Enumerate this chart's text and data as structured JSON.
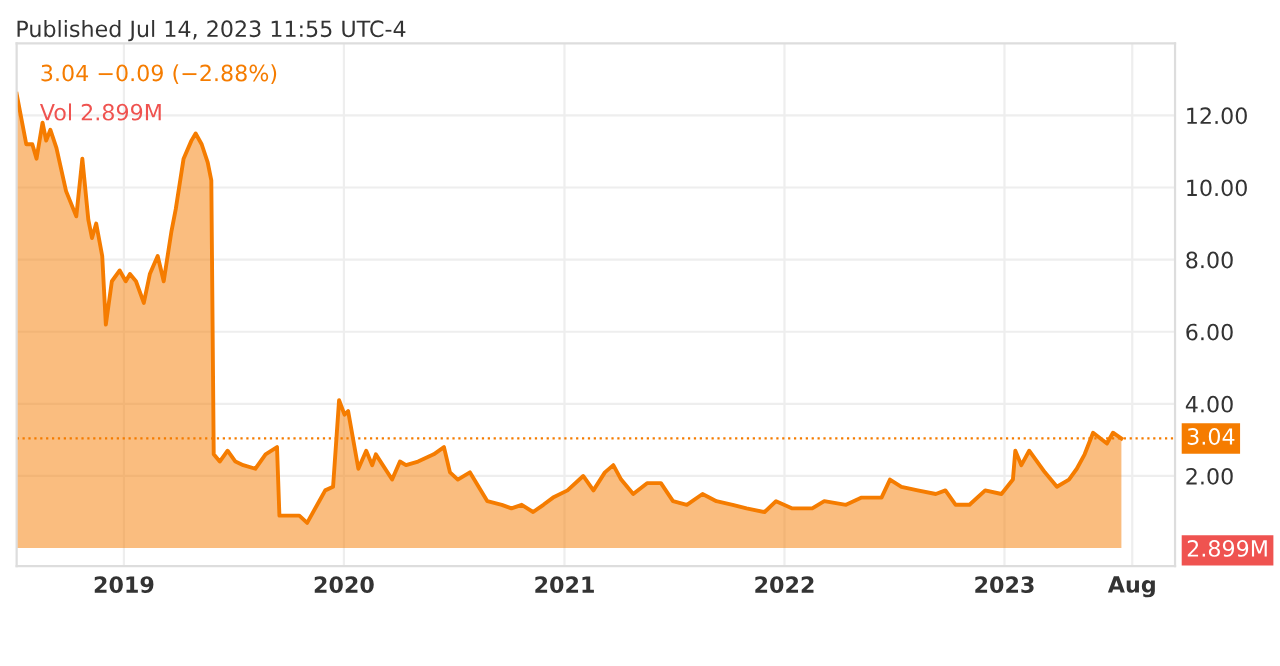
{
  "chart_data": {
    "type": "area",
    "title": "Published Jul 14, 2023 11:55 UTC-4",
    "x": [
      "2018-07-07",
      "2018-07-23",
      "2018-08-02",
      "2018-08-09",
      "2018-08-19",
      "2018-08-25",
      "2018-09-01",
      "2018-09-11",
      "2018-09-27",
      "2018-10-14",
      "2018-10-24",
      "2018-11-03",
      "2018-11-09",
      "2018-11-16",
      "2018-11-26",
      "2018-12-02",
      "2018-12-12",
      "2018-12-25",
      "2019-01-04",
      "2019-01-11",
      "2019-01-21",
      "2019-02-03",
      "2019-02-13",
      "2019-02-26",
      "2019-03-08",
      "2019-03-21",
      "2019-03-28",
      "2019-04-10",
      "2019-04-23",
      "2019-04-30",
      "2019-05-10",
      "2019-05-20",
      "2019-05-26",
      "2019-05-30",
      "2019-06-09",
      "2019-06-22",
      "2019-07-05",
      "2019-07-18",
      "2019-08-07",
      "2019-08-24",
      "2019-09-12",
      "2019-09-16",
      "2019-10-02",
      "2019-10-19",
      "2019-11-01",
      "2019-11-21",
      "2019-12-01",
      "2019-12-14",
      "2019-12-24",
      "2020-01-02",
      "2020-01-08",
      "2020-01-25",
      "2020-02-07",
      "2020-02-17",
      "2020-02-23",
      "2020-03-21",
      "2020-04-03",
      "2020-04-13",
      "2020-05-03",
      "2020-05-29",
      "2020-06-15",
      "2020-06-25",
      "2020-07-08",
      "2020-07-28",
      "2020-08-26",
      "2020-09-19",
      "2020-10-05",
      "2020-10-22",
      "2020-11-10",
      "2020-11-27",
      "2020-12-13",
      "2021-01-06",
      "2021-02-01",
      "2021-02-18",
      "2021-03-09",
      "2021-03-23",
      "2021-04-05",
      "2021-04-25",
      "2021-05-18",
      "2021-06-10",
      "2021-06-30",
      "2021-07-23",
      "2021-08-18",
      "2021-09-10",
      "2021-10-07",
      "2021-10-30",
      "2021-11-29",
      "2021-12-18",
      "2022-01-14",
      "2022-02-16",
      "2022-03-08",
      "2022-04-13",
      "2022-05-09",
      "2022-06-11",
      "2022-06-25",
      "2022-07-14",
      "2022-08-10",
      "2022-09-09",
      "2022-09-25",
      "2022-10-12",
      "2022-11-04",
      "2022-11-30",
      "2022-12-27",
      "2023-01-15",
      "2023-01-19",
      "2023-01-29",
      "2023-02-11",
      "2023-03-09",
      "2023-03-29",
      "2023-04-18",
      "2023-05-01",
      "2023-05-14",
      "2023-05-28",
      "2023-06-20",
      "2023-06-30",
      "2023-07-14"
    ],
    "series": [
      {
        "color": "#f57c00",
        "values": [
          12.6,
          11.2,
          11.2,
          10.8,
          11.8,
          11.3,
          11.6,
          11.1,
          9.9,
          9.2,
          10.8,
          9.1,
          8.6,
          9.0,
          8.1,
          6.2,
          7.4,
          7.7,
          7.4,
          7.6,
          7.4,
          6.8,
          7.6,
          8.1,
          7.4,
          8.8,
          9.4,
          10.8,
          11.3,
          11.5,
          11.2,
          10.7,
          10.2,
          2.6,
          2.4,
          2.7,
          2.4,
          2.3,
          2.2,
          2.6,
          2.8,
          0.9,
          0.9,
          0.9,
          0.7,
          1.3,
          1.6,
          1.7,
          4.1,
          3.7,
          3.8,
          2.2,
          2.7,
          2.3,
          2.6,
          1.9,
          2.4,
          2.3,
          2.4,
          2.6,
          2.8,
          2.1,
          1.9,
          2.1,
          1.3,
          1.2,
          1.1,
          1.2,
          1.0,
          1.2,
          1.4,
          1.6,
          2.0,
          1.6,
          2.1,
          2.3,
          1.9,
          1.5,
          1.8,
          1.8,
          1.3,
          1.2,
          1.5,
          1.3,
          1.2,
          1.1,
          1.0,
          1.3,
          1.1,
          1.1,
          1.3,
          1.2,
          1.4,
          1.4,
          1.9,
          1.7,
          1.6,
          1.5,
          1.6,
          1.2,
          1.2,
          1.6,
          1.5,
          1.9,
          2.7,
          2.3,
          2.7,
          2.1,
          1.7,
          1.9,
          2.2,
          2.6,
          3.2,
          2.9,
          3.2,
          3.04
        ]
      }
    ],
    "xlim": [
      "2018-07-07",
      "2023-10-11"
    ],
    "xticks": [
      {
        "value": "2019-01-01",
        "label": "2019"
      },
      {
        "value": "2020-01-01",
        "label": "2020"
      },
      {
        "value": "2021-01-01",
        "label": "2021"
      },
      {
        "value": "2022-01-01",
        "label": "2022"
      },
      {
        "value": "2023-01-01",
        "label": "2023"
      },
      {
        "value": "2023-08-01",
        "label": "Aug"
      }
    ],
    "ylim": [
      -0.5,
      14
    ],
    "yticks": [
      {
        "value": 2,
        "label": "2.00"
      },
      {
        "value": 4,
        "label": "4.00"
      },
      {
        "value": 6,
        "label": "6.00"
      },
      {
        "value": 8,
        "label": "8.00"
      },
      {
        "value": 10,
        "label": "10.00"
      },
      {
        "value": 12,
        "label": "12.00"
      }
    ],
    "ref_lines": [
      {
        "axis": "y",
        "value": 3.04,
        "label": "3.04",
        "color": "#f57c00",
        "line_style": "dotted"
      }
    ],
    "annotations": [
      "3.04 −0.09 (−2.88%)",
      "Vol 2.899M",
      "2.899M"
    ],
    "grid": true,
    "legend": false
  }
}
